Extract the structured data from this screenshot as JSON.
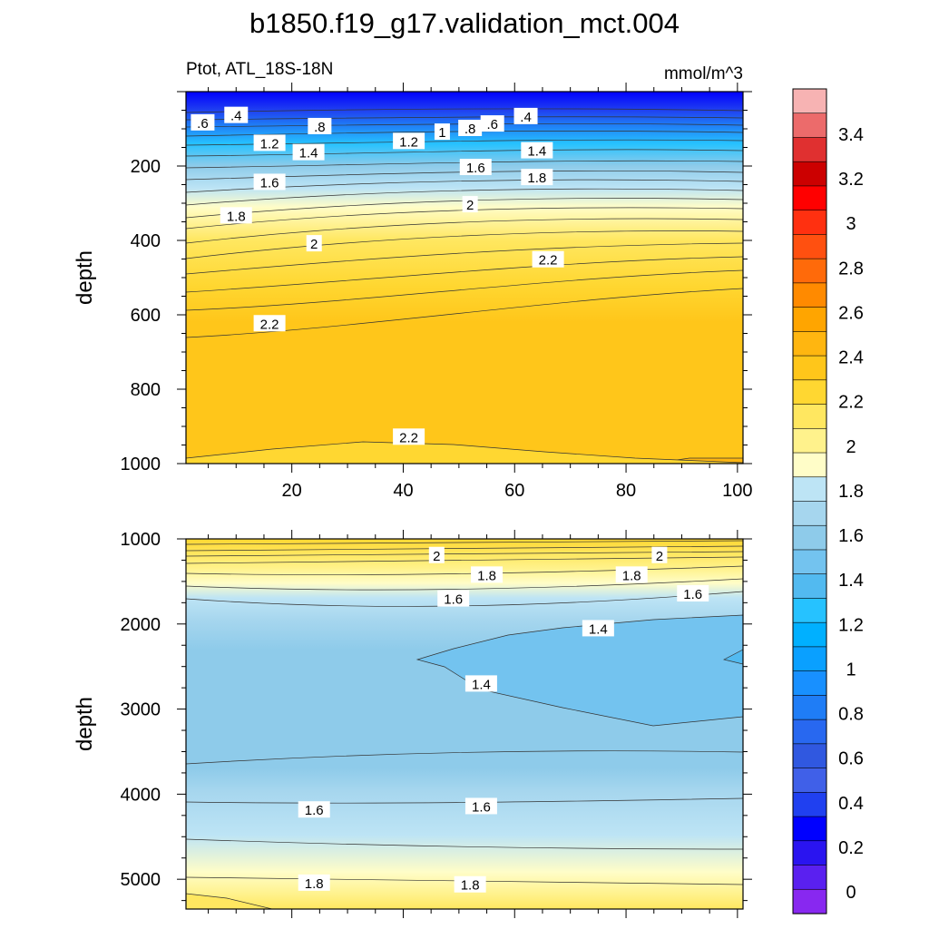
{
  "figure": {
    "title": "b1850.f19_g17.validation_mct.004",
    "variable_label": "Ptot, ATL_18S-18N",
    "units_label": "mmol/m^3"
  },
  "chart_data": [
    {
      "type": "contour",
      "panel": "upper",
      "ylabel": "depth",
      "xlabel": "",
      "xlim": [
        1,
        101
      ],
      "ylim": [
        1000,
        0
      ],
      "y_reversed": true,
      "x_ticks": [
        "20",
        "40",
        "60",
        "80",
        "100"
      ],
      "y_ticks": [
        "200",
        "400",
        "600",
        "800",
        "1000"
      ],
      "contour_labels": [
        {
          "text": ".6",
          "x": 4,
          "y": 85
        },
        {
          "text": ".4",
          "x": 10,
          "y": 65
        },
        {
          "text": ".8",
          "x": 25,
          "y": 95
        },
        {
          "text": "1.2",
          "x": 16,
          "y": 140
        },
        {
          "text": "1.4",
          "x": 23,
          "y": 165
        },
        {
          "text": "1.2",
          "x": 41,
          "y": 135
        },
        {
          "text": "1",
          "x": 47,
          "y": 110
        },
        {
          "text": ".8",
          "x": 52,
          "y": 100
        },
        {
          "text": ".6",
          "x": 56,
          "y": 88
        },
        {
          "text": ".4",
          "x": 62,
          "y": 68
        },
        {
          "text": "1.4",
          "x": 64,
          "y": 160
        },
        {
          "text": "1.6",
          "x": 53,
          "y": 205
        },
        {
          "text": "1.8",
          "x": 64,
          "y": 232
        },
        {
          "text": "1.6",
          "x": 16,
          "y": 245
        },
        {
          "text": "1.8",
          "x": 10,
          "y": 335
        },
        {
          "text": "2",
          "x": 52,
          "y": 305
        },
        {
          "text": "2",
          "x": 24,
          "y": 410
        },
        {
          "text": "2.2",
          "x": 66,
          "y": 453
        },
        {
          "text": "2.2",
          "x": 16,
          "y": 625
        },
        {
          "text": "2.2",
          "x": 41,
          "y": 930
        }
      ]
    },
    {
      "type": "contour",
      "panel": "lower",
      "ylabel": "depth",
      "xlabel": "",
      "xlim": [
        1,
        101
      ],
      "ylim": [
        5350,
        1000
      ],
      "y_reversed": true,
      "y_ticks": [
        "1000",
        "2000",
        "3000",
        "4000",
        "5000"
      ],
      "contour_labels": [
        {
          "text": "2",
          "x": 46,
          "y": 1200
        },
        {
          "text": "2",
          "x": 86,
          "y": 1200
        },
        {
          "text": "1.8",
          "x": 55,
          "y": 1430
        },
        {
          "text": "1.8",
          "x": 81,
          "y": 1430
        },
        {
          "text": "1.6",
          "x": 49,
          "y": 1710
        },
        {
          "text": "1.6",
          "x": 92,
          "y": 1650
        },
        {
          "text": "1.4",
          "x": 75,
          "y": 2060
        },
        {
          "text": "1.4",
          "x": 54,
          "y": 2710
        },
        {
          "text": "1.6",
          "x": 24,
          "y": 4190
        },
        {
          "text": "1.6",
          "x": 54,
          "y": 4150
        },
        {
          "text": "1.8",
          "x": 24,
          "y": 5050
        },
        {
          "text": "1.8",
          "x": 52,
          "y": 5070
        }
      ]
    }
  ],
  "colorbar": {
    "labels": [
      "3.4",
      "3.2",
      "3",
      "2.8",
      "2.6",
      "2.4",
      "2.2",
      "2",
      "1.8",
      "1.6",
      "1.4",
      "1.2",
      "1",
      "0.8",
      "0.6",
      "0.4",
      "0.2",
      "0"
    ],
    "colors": [
      "#f7b3b3",
      "#ec6b6b",
      "#e03030",
      "#cc0000",
      "#ff0000",
      "#ff3010",
      "#ff5010",
      "#ff6a0a",
      "#ff8a00",
      "#ffa500",
      "#ffb610",
      "#ffc61a",
      "#ffd731",
      "#ffe760",
      "#fff28c",
      "#fffdc8",
      "#bde4f5",
      "#a6d6ee",
      "#8ecbea",
      "#73c3ef",
      "#52baf0",
      "#26c2ff",
      "#00b0ff",
      "#0aa0ff",
      "#1890ff",
      "#1f7df6",
      "#2868f0",
      "#3058e0",
      "#4060e8",
      "#2040f0",
      "#0000ff",
      "#2a14f0",
      "#5a20f0",
      "#8828f0"
    ]
  }
}
